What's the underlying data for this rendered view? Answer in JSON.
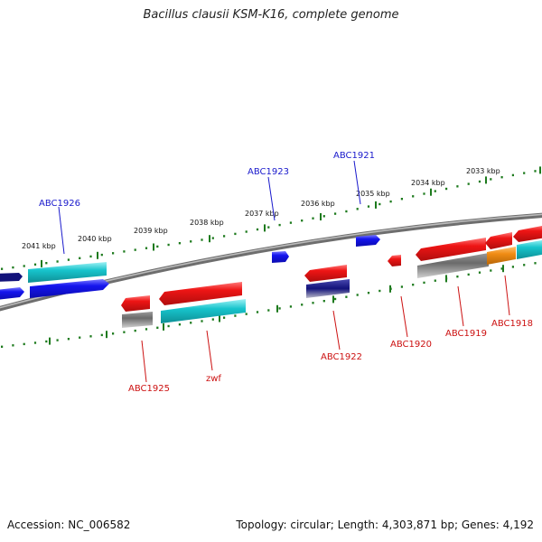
{
  "title": "Bacillus clausii KSM-K16, complete genome",
  "footer": {
    "accession": "Accession: NC_006582",
    "stats": "Topology: circular; Length: 4,303,871 bp; Genes: 4,192"
  },
  "scale": {
    "unit": "kbp",
    "labels": [
      "2041 kbp",
      "2040 kbp",
      "2039 kbp",
      "2038 kbp",
      "2037 kbp",
      "2036 kbp",
      "2035 kbp",
      "2034 kbp",
      "2033 kbp"
    ]
  },
  "gene_labels": {
    "forward": [
      "ABC1926",
      "ABC1923",
      "ABC1921"
    ],
    "reverse": [
      "ABC1925",
      "zwf",
      "ABC1922",
      "ABC1920",
      "ABC1919",
      "ABC1918"
    ]
  },
  "colors": {
    "forward_label": "#1a1acc",
    "reverse_label": "#cc1111",
    "forward_cds": "#1515ee",
    "reverse_cds": "#ee1515",
    "cyan_feature": "#17c4cc",
    "navy_feature": "#12127a",
    "gray_feature": "#6a6a6a",
    "orange_feature": "#f08c14",
    "backbone": "#8a8a8a",
    "ticks": "#1d7a1d"
  }
}
